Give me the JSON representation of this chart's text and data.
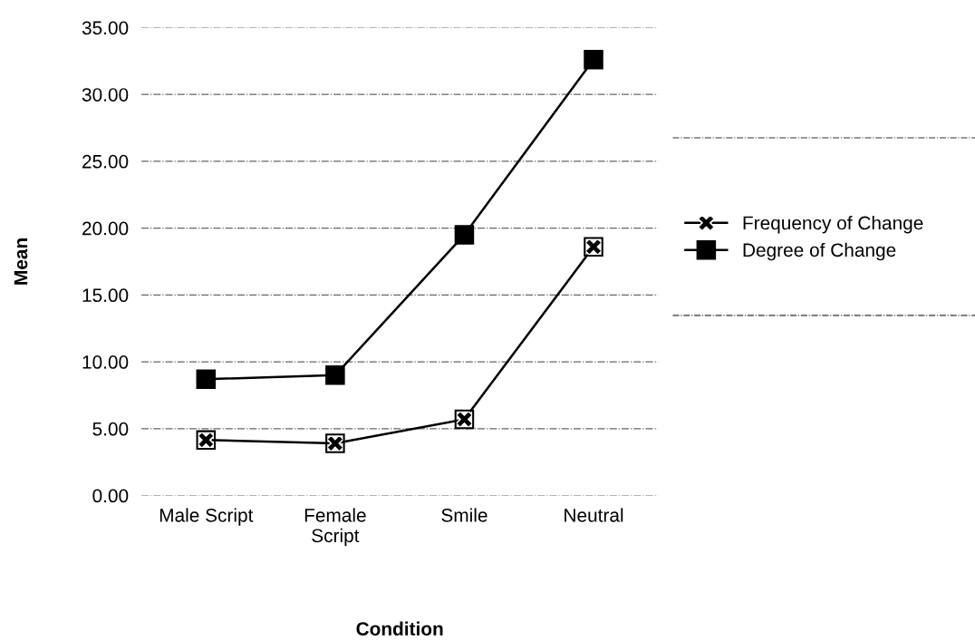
{
  "chart_data": {
    "type": "line",
    "xlabel": "Condition",
    "ylabel": "Mean",
    "categories": [
      "Male Script",
      "Female\nScript",
      "Smile",
      "Neutral"
    ],
    "series": [
      {
        "name": "Frequency of Change",
        "color": "#000000",
        "marker": "cross",
        "values": [
          4.15,
          3.9,
          5.7,
          18.6
        ]
      },
      {
        "name": "Degree of Change",
        "color": "#000000",
        "marker": "square",
        "values": [
          8.7,
          9.0,
          19.5,
          32.6
        ]
      }
    ],
    "ylim": [
      0,
      35
    ],
    "yticks": [
      {
        "value": 0,
        "label": "0.00"
      },
      {
        "value": 5,
        "label": "5.00"
      },
      {
        "value": 10,
        "label": "10.00"
      },
      {
        "value": 15,
        "label": "15.00"
      },
      {
        "value": 20,
        "label": "20.00"
      },
      {
        "value": 25,
        "label": "25.00"
      },
      {
        "value": 30,
        "label": "30.00"
      },
      {
        "value": 35,
        "label": "35.00"
      }
    ],
    "grid": "y",
    "legend": "right",
    "line_style": "solid"
  }
}
